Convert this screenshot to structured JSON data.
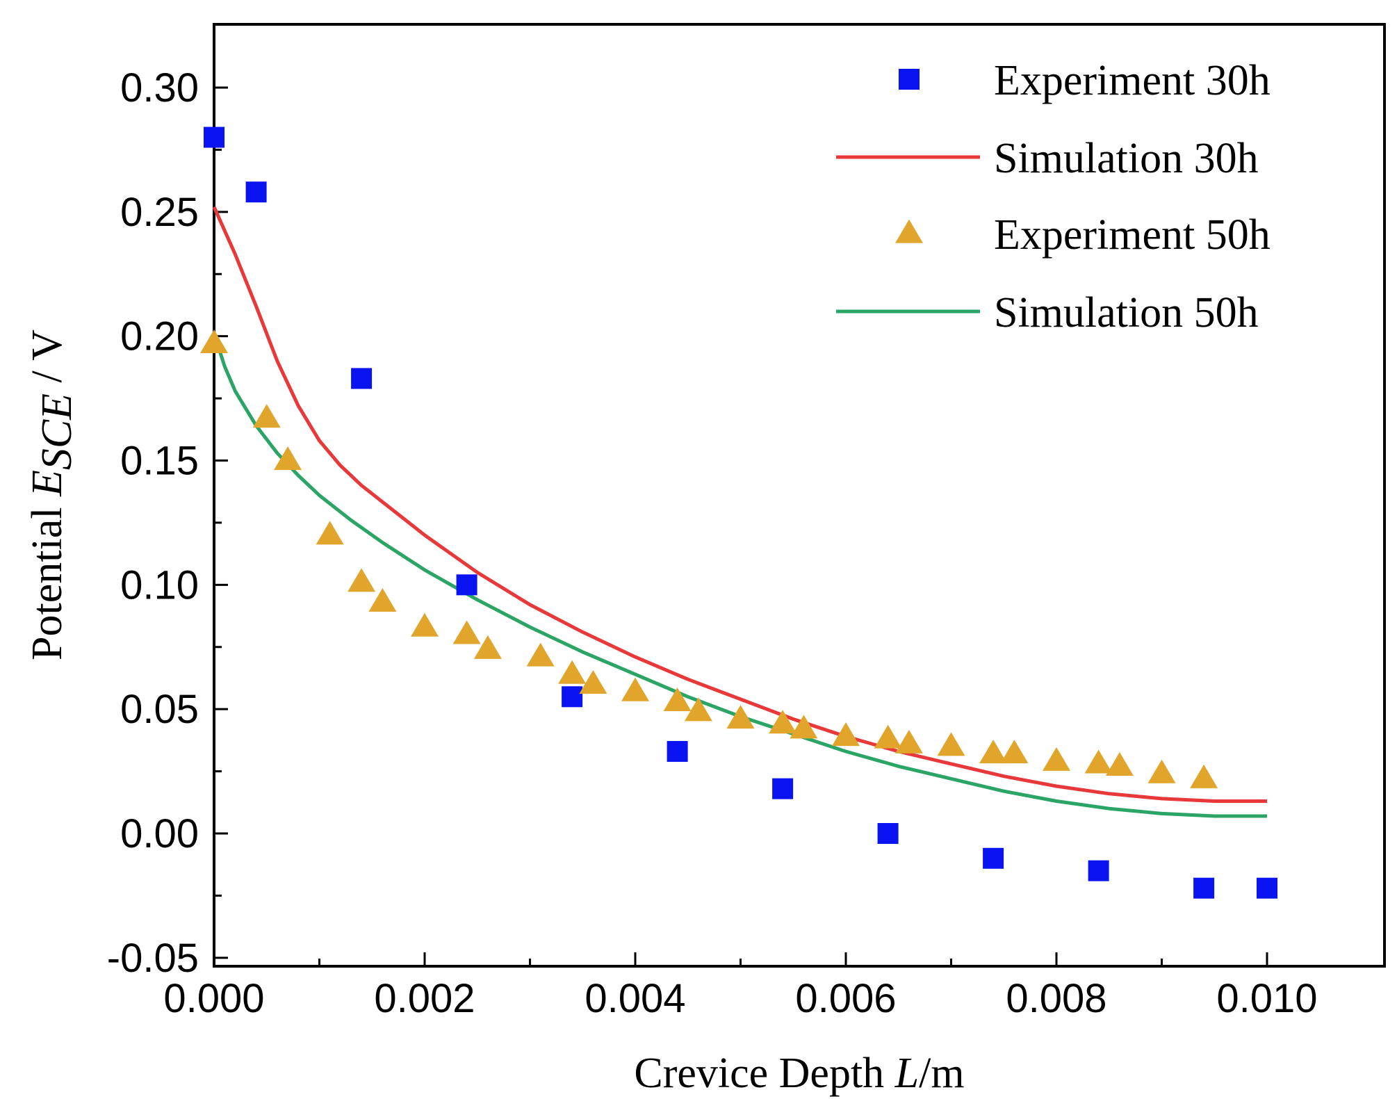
{
  "chart_data": {
    "type": "scatter",
    "xlabel": {
      "prefix": "Crevice Depth ",
      "var": "L",
      "suffix": "/m"
    },
    "ylabel": {
      "prefix": "Potential ",
      "var": "E",
      "sub": "SCE",
      "suffix": " / V"
    },
    "xlim": [
      0,
      0.011
    ],
    "ylim": [
      -0.05,
      0.325
    ],
    "x_ticks": [
      0.0,
      0.002,
      0.004,
      0.006,
      0.008,
      0.01
    ],
    "x_tick_labels": [
      "0.000",
      "0.002",
      "0.004",
      "0.006",
      "0.008",
      "0.010"
    ],
    "y_ticks": [
      -0.05,
      0.0,
      0.05,
      0.1,
      0.15,
      0.2,
      0.25,
      0.3
    ],
    "y_tick_labels": [
      "-0.05",
      "0.00",
      "0.05",
      "0.10",
      "0.15",
      "0.20",
      "0.25",
      "0.30"
    ],
    "legend_position": "top-right",
    "grid": false,
    "series": [
      {
        "name": "Experiment 30h",
        "kind": "scatter",
        "marker": "square",
        "color": "#0a14f0",
        "x": [
          0.0,
          0.0004,
          0.0014,
          0.0024,
          0.0034,
          0.0044,
          0.0054,
          0.0064,
          0.0074,
          0.0084,
          0.0094,
          0.01
        ],
        "y": [
          0.28,
          0.258,
          0.183,
          0.1,
          0.055,
          0.033,
          0.018,
          0.0,
          -0.01,
          -0.015,
          -0.022,
          -0.022
        ]
      },
      {
        "name": "Simulation 30h",
        "kind": "line",
        "color": "#e8383a",
        "x": [
          0.0,
          0.0002,
          0.0004,
          0.0006,
          0.0008,
          0.001,
          0.0012,
          0.0014,
          0.0017,
          0.002,
          0.0025,
          0.003,
          0.0035,
          0.004,
          0.0045,
          0.005,
          0.0055,
          0.006,
          0.0065,
          0.007,
          0.0075,
          0.008,
          0.0085,
          0.009,
          0.0095,
          0.01
        ],
        "y": [
          0.252,
          0.233,
          0.212,
          0.19,
          0.172,
          0.158,
          0.148,
          0.14,
          0.13,
          0.12,
          0.105,
          0.092,
          0.081,
          0.071,
          0.062,
          0.054,
          0.046,
          0.039,
          0.033,
          0.028,
          0.023,
          0.019,
          0.016,
          0.014,
          0.013,
          0.013
        ]
      },
      {
        "name": "Experiment 50h",
        "kind": "scatter",
        "marker": "triangle",
        "color": "#e0a52a",
        "x": [
          0.0,
          0.0005,
          0.0007,
          0.0011,
          0.0014,
          0.0016,
          0.002,
          0.0024,
          0.0026,
          0.0031,
          0.0034,
          0.0036,
          0.004,
          0.0044,
          0.0046,
          0.005,
          0.0054,
          0.0056,
          0.006,
          0.0064,
          0.0066,
          0.007,
          0.0074,
          0.0076,
          0.008,
          0.0084,
          0.0086,
          0.009,
          0.0094
        ],
        "y": [
          0.197,
          0.167,
          0.15,
          0.12,
          0.101,
          0.093,
          0.083,
          0.08,
          0.074,
          0.071,
          0.064,
          0.06,
          0.057,
          0.053,
          0.049,
          0.046,
          0.044,
          0.042,
          0.039,
          0.038,
          0.036,
          0.035,
          0.032,
          0.032,
          0.029,
          0.028,
          0.027,
          0.024,
          0.022
        ]
      },
      {
        "name": "Simulation 50h",
        "kind": "line",
        "color": "#2ba566",
        "x": [
          0.0,
          0.0001,
          0.0002,
          0.0004,
          0.0006,
          0.0008,
          0.001,
          0.0013,
          0.0016,
          0.002,
          0.0025,
          0.003,
          0.0035,
          0.004,
          0.0045,
          0.005,
          0.0055,
          0.006,
          0.0065,
          0.007,
          0.0075,
          0.008,
          0.0085,
          0.009,
          0.0095,
          0.01
        ],
        "y": [
          0.201,
          0.188,
          0.178,
          0.164,
          0.153,
          0.144,
          0.136,
          0.126,
          0.117,
          0.106,
          0.094,
          0.083,
          0.073,
          0.064,
          0.055,
          0.047,
          0.04,
          0.033,
          0.027,
          0.022,
          0.017,
          0.013,
          0.01,
          0.008,
          0.007,
          0.007
        ]
      }
    ]
  }
}
